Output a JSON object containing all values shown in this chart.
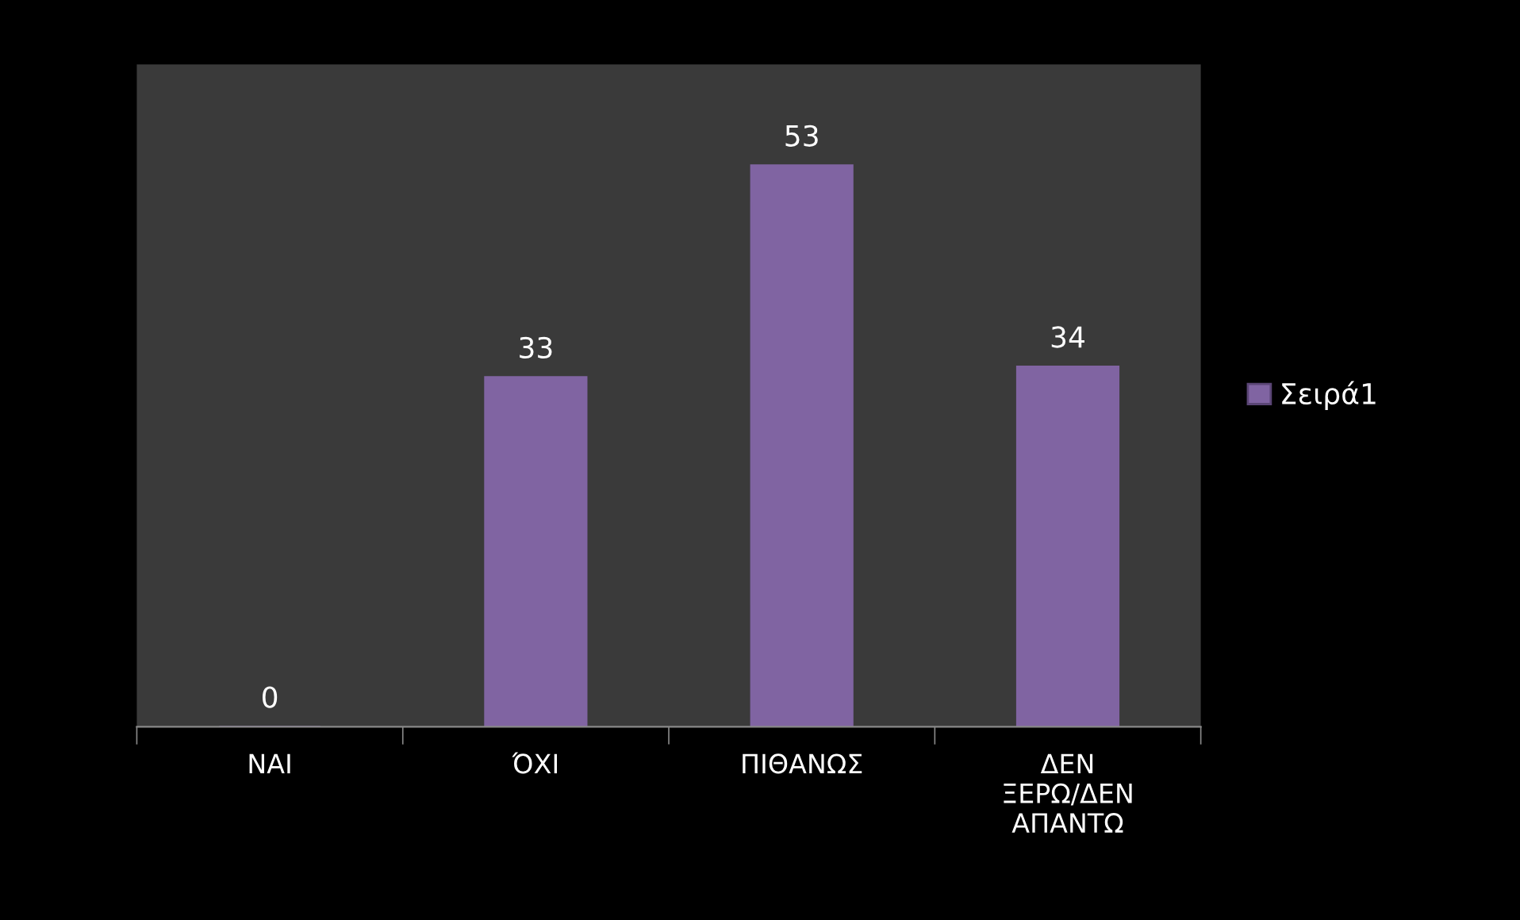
{
  "chart_data": {
    "type": "bar",
    "categories": [
      "ΝΑΙ",
      "ΌΧΙ",
      "ΠΙΘΑΝΩΣ",
      "ΔΕΝ\nΞΕΡΩ/ΔΕΝ\nΑΠΑΝΤΩ"
    ],
    "series": [
      {
        "name": "Σειρά1",
        "color": "#8064a2",
        "values": [
          0,
          33,
          53,
          34
        ]
      }
    ],
    "data_labels": true,
    "legend": "right",
    "grid": false
  }
}
